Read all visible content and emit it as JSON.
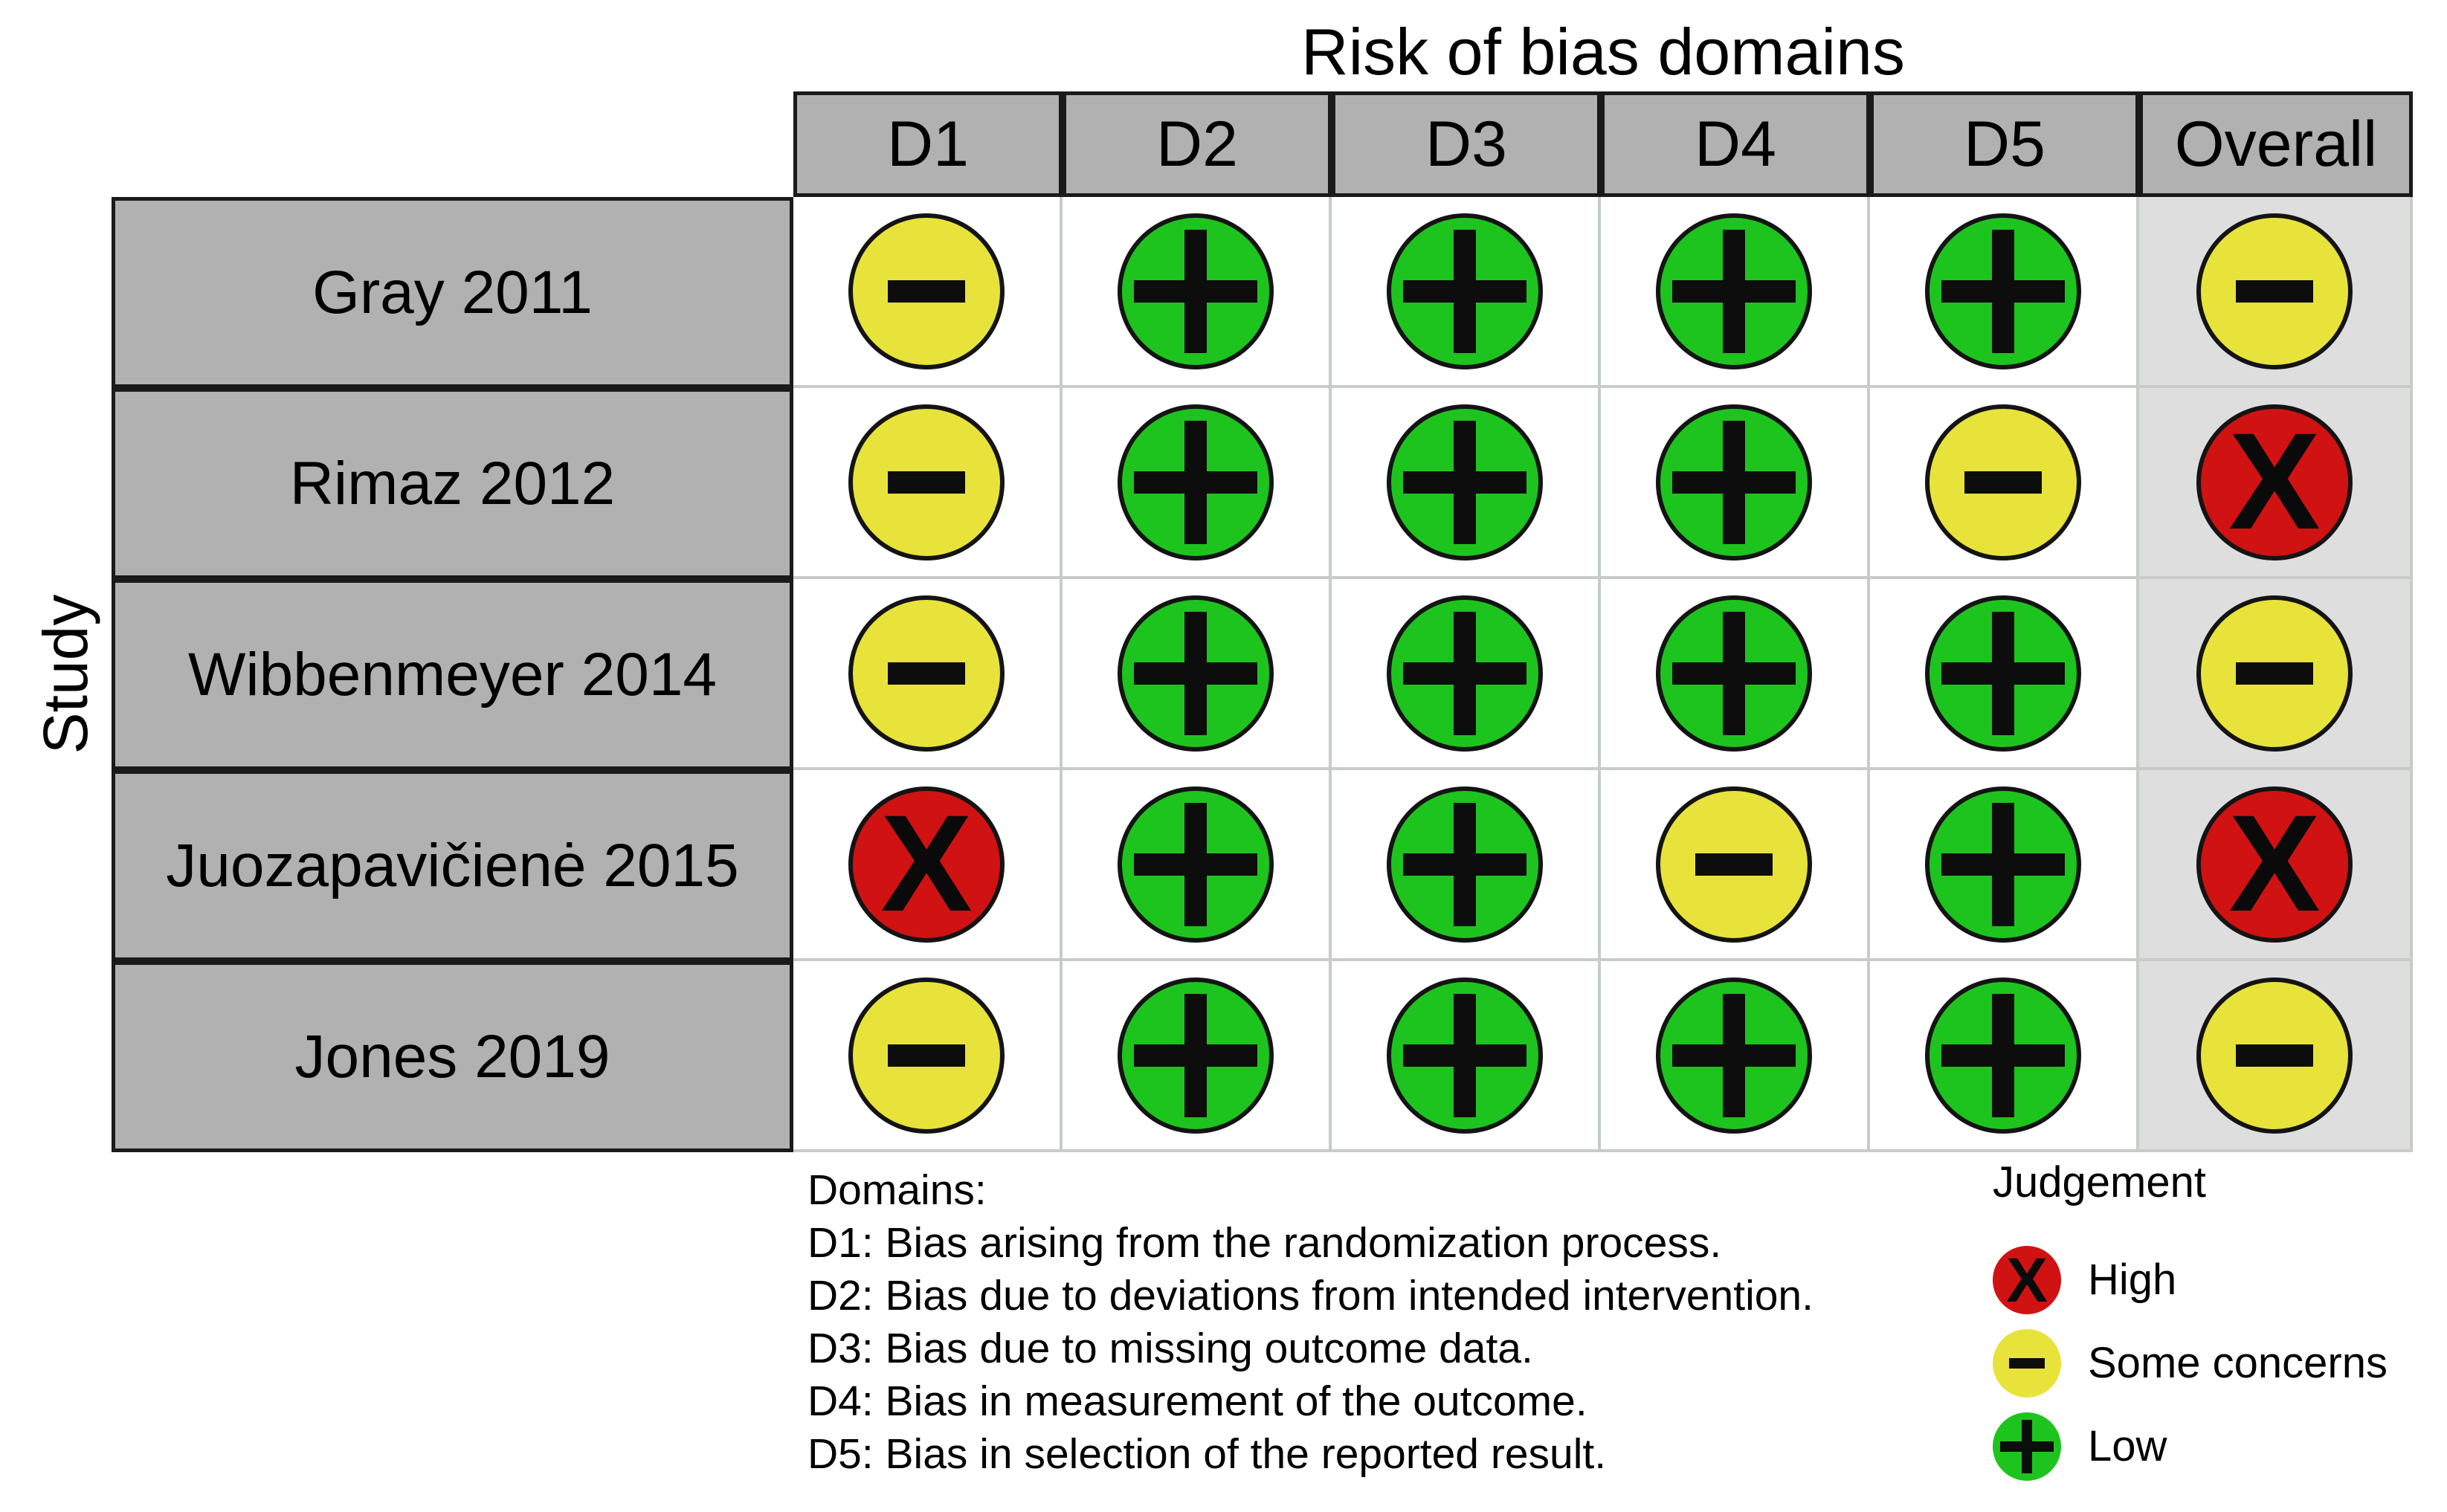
{
  "chart_data": {
    "type": "heatmap",
    "title": "Risk of bias domains",
    "y_title": "Study",
    "columns": [
      "D1",
      "D2",
      "D3",
      "D4",
      "D5",
      "Overall"
    ],
    "rows": [
      "Gray 2011",
      "Rimaz 2012",
      "Wibbenmeyer 2014",
      "Juozapavičienė 2015",
      "Jones 2019"
    ],
    "values": [
      [
        "some",
        "low",
        "low",
        "low",
        "low",
        "some"
      ],
      [
        "some",
        "low",
        "low",
        "low",
        "some",
        "high"
      ],
      [
        "some",
        "low",
        "low",
        "low",
        "low",
        "some"
      ],
      [
        "high",
        "low",
        "low",
        "some",
        "low",
        "high"
      ],
      [
        "some",
        "low",
        "low",
        "low",
        "low",
        "some"
      ]
    ],
    "legend_position": "bottom-right",
    "grid": "on"
  },
  "symbols": {
    "low": "+",
    "some": "−",
    "high": "X"
  },
  "colors": {
    "low": "#1EC41E",
    "some": "#E8E33B",
    "high": "#D01212",
    "header_bg": "#B1B1B1",
    "overall_bg": "#DEDEDE",
    "grid_line": "#C6CCC6",
    "table_border": "#1A1A1A",
    "symbol": "#0D0D0D"
  },
  "footnote": {
    "heading": "Domains:",
    "items": [
      "D1: Bias arising from the randomization process.",
      "D2: Bias due to deviations from intended intervention.",
      "D3: Bias due to missing outcome data.",
      "D4: Bias in measurement of the outcome.",
      "D5: Bias in selection of the reported result."
    ]
  },
  "legend": {
    "title": "Judgement",
    "items": [
      {
        "judgement": "high",
        "label": "High"
      },
      {
        "judgement": "some",
        "label": "Some concerns"
      },
      {
        "judgement": "low",
        "label": "Low"
      }
    ]
  }
}
